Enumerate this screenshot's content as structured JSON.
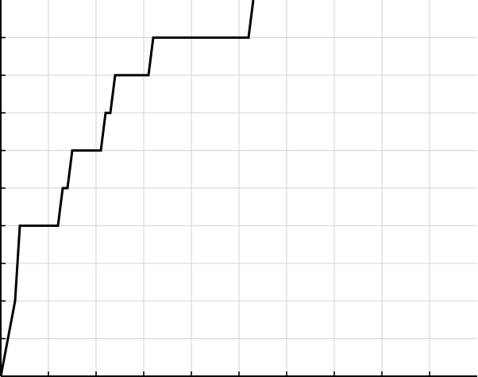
{
  "chart_data": {
    "type": "line",
    "title": "",
    "xlabel": "",
    "ylabel": "",
    "xlim": [
      0,
      10
    ],
    "ylim": [
      0,
      10
    ],
    "x_ticks": [
      0,
      1,
      2,
      3,
      4,
      5,
      6,
      7,
      8,
      9,
      10
    ],
    "y_ticks": [
      0,
      1,
      2,
      3,
      4,
      5,
      6,
      7,
      8,
      9,
      10
    ],
    "grid": true,
    "series": [
      {
        "color": "#000000",
        "x": [
          0,
          0.3,
          0.4,
          1.2,
          1.3,
          1.4,
          1.5,
          2.1,
          2.2,
          2.3,
          2.4,
          3.1,
          3.2,
          5.2,
          5.3
        ],
        "y": [
          0,
          2,
          4,
          4,
          5,
          5,
          6,
          6,
          7,
          7,
          8,
          8,
          9,
          9,
          10
        ]
      }
    ]
  }
}
